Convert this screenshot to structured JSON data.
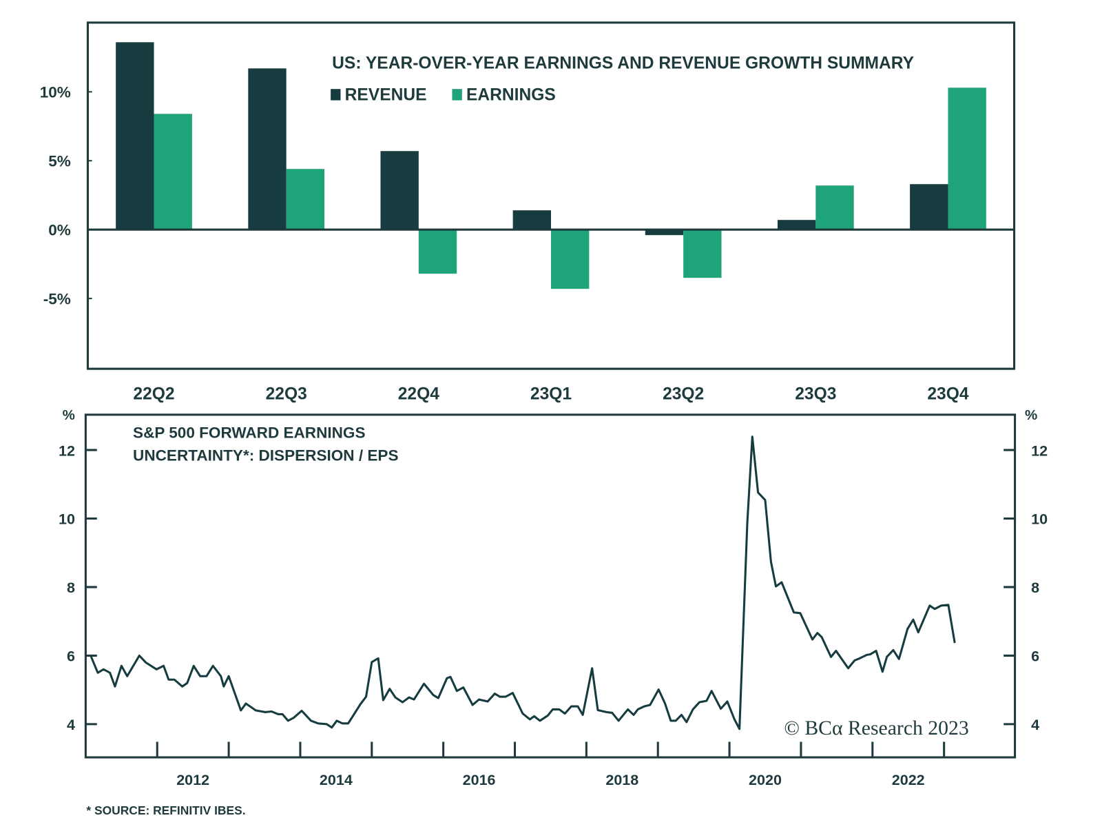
{
  "colors": {
    "revenue": "#163c40",
    "earnings": "#1fa37a",
    "line": "#163c40",
    "axis": "#1f3a3c"
  },
  "chart_data": [
    {
      "type": "bar",
      "title": "US: YEAR-OVER-YEAR EARNINGS AND REVENUE GROWTH SUMMARY",
      "categories": [
        "22Q2",
        "22Q3",
        "22Q4",
        "23Q1",
        "23Q2",
        "23Q3",
        "23Q4"
      ],
      "series": [
        {
          "name": "REVENUE",
          "values": [
            13.6,
            11.7,
            5.7,
            1.4,
            -0.4,
            0.7,
            3.3
          ]
        },
        {
          "name": "EARNINGS",
          "values": [
            8.4,
            4.4,
            -3.2,
            -4.3,
            -3.5,
            3.2,
            10.3
          ]
        }
      ],
      "ylim": [
        -10,
        15
      ],
      "yticks": [
        10,
        5,
        0,
        -5
      ],
      "ytick_labels": [
        "10%",
        "5%",
        "0%",
        "-5%"
      ],
      "legend": "top-center",
      "grid": false
    },
    {
      "type": "line",
      "title_lines": [
        "S&P 500 FORWARD EARNINGS",
        "UNCERTAINTY*: DISPERSION / EPS"
      ],
      "yunit_left": "%",
      "yunit_right": "%",
      "ylim": [
        3,
        13
      ],
      "yticks": [
        4,
        6,
        8,
        10,
        12
      ],
      "ytick_labels": [
        "4",
        "6",
        "8",
        "10",
        "12"
      ],
      "xlim": [
        2011,
        2024
      ],
      "xtick_labels": [
        "2012",
        "2014",
        "2016",
        "2018",
        "2020",
        "2022"
      ],
      "grid": false,
      "x": [
        2011.07,
        2011.17,
        2011.25,
        2011.34,
        2011.41,
        2011.5,
        2011.58,
        2011.75,
        2011.84,
        2011.99,
        2012.09,
        2012.16,
        2012.24,
        2012.35,
        2012.42,
        2012.51,
        2012.6,
        2012.69,
        2012.78,
        2012.89,
        2012.93,
        2013.0,
        2013.17,
        2013.24,
        2013.38,
        2013.51,
        2013.6,
        2013.69,
        2013.75,
        2013.83,
        2013.91,
        2014.02,
        2014.15,
        2014.25,
        2014.37,
        2014.44,
        2014.51,
        2014.59,
        2014.67,
        2014.84,
        2014.92,
        2015.0,
        2015.09,
        2015.16,
        2015.25,
        2015.33,
        2015.43,
        2015.52,
        2015.59,
        2015.73,
        2015.86,
        2015.93,
        2016.05,
        2016.1,
        2016.19,
        2016.28,
        2016.41,
        2016.5,
        2016.62,
        2016.72,
        2016.79,
        2016.87,
        2016.97,
        2017.11,
        2017.21,
        2017.27,
        2017.35,
        2017.46,
        2017.53,
        2017.62,
        2017.7,
        2017.79,
        2017.88,
        2017.95,
        2018.08,
        2018.16,
        2018.28,
        2018.36,
        2018.45,
        2018.58,
        2018.66,
        2018.72,
        2018.81,
        2018.89,
        2019.01,
        2019.1,
        2019.18,
        2019.25,
        2019.33,
        2019.4,
        2019.49,
        2019.58,
        2019.68,
        2019.75,
        2019.88,
        2019.97,
        2020.07,
        2020.14,
        2020.25,
        2020.32,
        2020.4,
        2020.5,
        2020.58,
        2020.65,
        2020.73,
        2020.9,
        2020.99,
        2021.16,
        2021.23,
        2021.29,
        2021.42,
        2021.49,
        2021.66,
        2021.75,
        2021.82,
        2021.92,
        2021.97,
        2022.05,
        2022.14,
        2022.2,
        2022.29,
        2022.37,
        2022.49,
        2022.57,
        2022.64,
        2022.8,
        2022.87,
        2022.96,
        2023.06,
        2023.15
      ],
      "y": [
        6.0,
        5.5,
        5.6,
        5.5,
        5.1,
        5.7,
        5.4,
        6.0,
        5.8,
        5.6,
        5.7,
        5.3,
        5.3,
        5.1,
        5.2,
        5.7,
        5.4,
        5.4,
        5.7,
        5.4,
        5.1,
        5.4,
        4.4,
        4.6,
        4.4,
        4.35,
        4.37,
        4.29,
        4.29,
        4.1,
        4.19,
        4.39,
        4.1,
        4.02,
        4.0,
        3.9,
        4.1,
        4.02,
        4.02,
        4.58,
        4.8,
        5.81,
        5.92,
        4.7,
        5.03,
        4.78,
        4.64,
        4.78,
        4.72,
        5.18,
        4.85,
        4.76,
        5.34,
        5.38,
        4.97,
        5.07,
        4.56,
        4.72,
        4.66,
        4.89,
        4.8,
        4.8,
        4.91,
        4.31,
        4.14,
        4.23,
        4.1,
        4.25,
        4.43,
        4.43,
        4.31,
        4.52,
        4.52,
        4.27,
        5.63,
        4.41,
        4.35,
        4.33,
        4.1,
        4.43,
        4.27,
        4.43,
        4.52,
        4.56,
        5.01,
        4.6,
        4.1,
        4.1,
        4.27,
        4.06,
        4.43,
        4.64,
        4.68,
        4.97,
        4.45,
        4.66,
        4.14,
        3.86,
        9.88,
        12.39,
        10.76,
        10.54,
        8.74,
        8.02,
        8.14,
        7.26,
        7.24,
        6.47,
        6.66,
        6.54,
        5.96,
        6.14,
        5.63,
        5.86,
        5.92,
        6.02,
        6.04,
        6.14,
        5.53,
        5.96,
        6.16,
        5.9,
        6.78,
        7.05,
        6.68,
        7.46,
        7.36,
        7.46,
        7.48,
        6.37
      ]
    }
  ],
  "watermark": "© BCα Research 2023",
  "footnote": "* SOURCE: REFINITIV IBES."
}
